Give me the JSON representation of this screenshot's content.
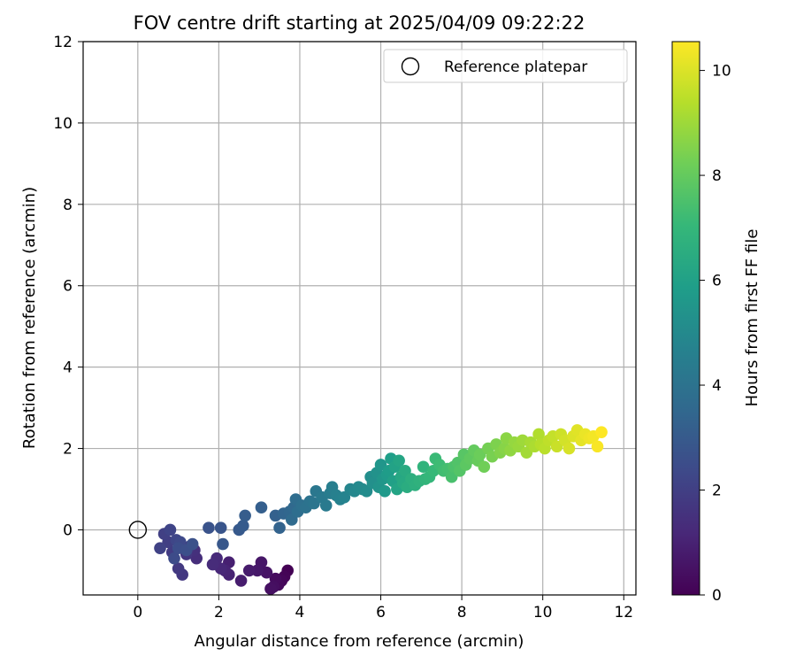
{
  "chart_data": {
    "type": "scatter",
    "title": "FOV centre drift starting at 2025/04/09 09:22:22",
    "xlabel": "Angular distance from reference (arcmin)",
    "ylabel": "Rotation from reference (arcmin)",
    "xlim": [
      -1.35,
      12.3
    ],
    "ylim": [
      -1.6,
      12
    ],
    "xticks": [
      0,
      2,
      4,
      6,
      8,
      10,
      12
    ],
    "yticks": [
      0,
      2,
      4,
      6,
      8,
      10,
      12
    ],
    "grid": true,
    "legend": {
      "location": "upper right",
      "entries": [
        "Reference platepar"
      ]
    },
    "reference_point": {
      "name": "Reference platepar",
      "x": 0,
      "y": 0
    },
    "colorbar": {
      "label": "Hours from first FF file",
      "colormap": "viridis",
      "range": [
        0,
        10.55
      ],
      "ticks": [
        0,
        2,
        4,
        6,
        8,
        10
      ]
    },
    "colormap_stops": [
      "#440154",
      "#482878",
      "#3e4989",
      "#31688e",
      "#26828e",
      "#1f9e89",
      "#35b779",
      "#6ece58",
      "#b5de2b",
      "#fde725"
    ],
    "series": [
      {
        "points": [
          [
            3.7,
            -1.0
          ],
          [
            3.62,
            -1.15
          ],
          [
            3.55,
            -1.25
          ],
          [
            3.47,
            -1.35
          ],
          [
            3.4,
            -1.2
          ],
          [
            3.35,
            -1.4
          ],
          [
            3.28,
            -1.45
          ],
          [
            3.18,
            -1.05
          ],
          [
            3.05,
            -0.8
          ],
          [
            2.95,
            -1.0
          ],
          [
            2.75,
            -1.0
          ],
          [
            2.55,
            -1.25
          ],
          [
            2.25,
            -0.8
          ],
          [
            2.25,
            -1.1
          ],
          [
            2.15,
            -1.0
          ],
          [
            2.05,
            -0.95
          ],
          [
            1.95,
            -0.7
          ],
          [
            1.85,
            -0.85
          ],
          [
            1.45,
            -0.7
          ],
          [
            1.4,
            -0.5
          ],
          [
            1.3,
            -0.4
          ],
          [
            1.2,
            -0.6
          ],
          [
            1.1,
            -1.1
          ],
          [
            1.0,
            -0.95
          ],
          [
            0.85,
            -0.55
          ],
          [
            0.75,
            -0.3
          ],
          [
            0.65,
            -0.1
          ],
          [
            0.55,
            -0.45
          ],
          [
            0.8,
            0.0
          ],
          [
            0.95,
            -0.25
          ],
          [
            1.05,
            -0.3
          ],
          [
            0.9,
            -0.7
          ],
          [
            1.0,
            -0.45
          ],
          [
            1.2,
            -0.5
          ],
          [
            1.35,
            -0.35
          ],
          [
            1.75,
            0.05
          ],
          [
            2.05,
            0.05
          ],
          [
            2.1,
            -0.35
          ],
          [
            2.5,
            0.0
          ],
          [
            2.6,
            0.1
          ],
          [
            2.65,
            0.35
          ],
          [
            3.05,
            0.55
          ],
          [
            3.4,
            0.35
          ],
          [
            3.5,
            0.05
          ],
          [
            3.6,
            0.4
          ],
          [
            3.75,
            0.45
          ],
          [
            3.85,
            0.55
          ],
          [
            3.8,
            0.25
          ],
          [
            3.9,
            0.75
          ],
          [
            3.95,
            0.45
          ],
          [
            4.05,
            0.6
          ],
          [
            4.15,
            0.55
          ],
          [
            4.25,
            0.7
          ],
          [
            4.35,
            0.65
          ],
          [
            4.4,
            0.95
          ],
          [
            4.55,
            0.8
          ],
          [
            4.65,
            0.6
          ],
          [
            4.75,
            0.9
          ],
          [
            4.8,
            1.05
          ],
          [
            4.9,
            0.85
          ],
          [
            5.0,
            0.75
          ],
          [
            5.1,
            0.8
          ],
          [
            5.25,
            1.0
          ],
          [
            5.35,
            0.95
          ],
          [
            5.45,
            1.05
          ],
          [
            5.55,
            1.0
          ],
          [
            5.65,
            0.95
          ],
          [
            5.75,
            1.3
          ],
          [
            5.8,
            1.15
          ],
          [
            5.9,
            1.4
          ],
          [
            5.95,
            1.05
          ],
          [
            6.0,
            1.6
          ],
          [
            6.05,
            1.25
          ],
          [
            6.1,
            0.95
          ],
          [
            6.15,
            1.35
          ],
          [
            6.2,
            1.45
          ],
          [
            6.25,
            1.75
          ],
          [
            6.3,
            1.2
          ],
          [
            6.35,
            1.55
          ],
          [
            6.4,
            1.0
          ],
          [
            6.45,
            1.7
          ],
          [
            6.5,
            1.3
          ],
          [
            6.55,
            1.15
          ],
          [
            6.6,
            1.45
          ],
          [
            6.65,
            1.05
          ],
          [
            6.75,
            1.25
          ],
          [
            6.85,
            1.1
          ],
          [
            6.95,
            1.2
          ],
          [
            7.05,
            1.55
          ],
          [
            7.1,
            1.25
          ],
          [
            7.2,
            1.3
          ],
          [
            7.3,
            1.45
          ],
          [
            7.35,
            1.75
          ],
          [
            7.45,
            1.6
          ],
          [
            7.55,
            1.45
          ],
          [
            7.65,
            1.5
          ],
          [
            7.75,
            1.3
          ],
          [
            7.8,
            1.55
          ],
          [
            7.9,
            1.65
          ],
          [
            7.95,
            1.45
          ],
          [
            8.05,
            1.85
          ],
          [
            8.1,
            1.6
          ],
          [
            8.2,
            1.75
          ],
          [
            8.3,
            1.95
          ],
          [
            8.4,
            1.7
          ],
          [
            8.45,
            1.85
          ],
          [
            8.55,
            1.55
          ],
          [
            8.65,
            2.0
          ],
          [
            8.75,
            1.8
          ],
          [
            8.85,
            2.1
          ],
          [
            8.95,
            1.9
          ],
          [
            9.05,
            2.0
          ],
          [
            9.1,
            2.25
          ],
          [
            9.2,
            1.95
          ],
          [
            9.3,
            2.15
          ],
          [
            9.4,
            2.05
          ],
          [
            9.5,
            2.2
          ],
          [
            9.6,
            1.9
          ],
          [
            9.7,
            2.15
          ],
          [
            9.8,
            2.05
          ],
          [
            9.9,
            2.35
          ],
          [
            9.95,
            2.1
          ],
          [
            10.05,
            2.0
          ],
          [
            10.15,
            2.2
          ],
          [
            10.25,
            2.3
          ],
          [
            10.35,
            2.05
          ],
          [
            10.45,
            2.35
          ],
          [
            10.55,
            2.2
          ],
          [
            10.65,
            2.0
          ],
          [
            10.75,
            2.3
          ],
          [
            10.85,
            2.45
          ],
          [
            10.95,
            2.2
          ],
          [
            11.05,
            2.35
          ],
          [
            11.15,
            2.25
          ],
          [
            11.25,
            2.3
          ],
          [
            11.35,
            2.05
          ],
          [
            11.45,
            2.4
          ]
        ]
      }
    ]
  }
}
